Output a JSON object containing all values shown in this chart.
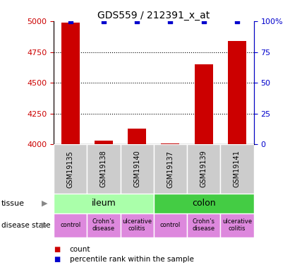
{
  "title": "GDS559 / 212391_x_at",
  "samples": [
    "GSM19135",
    "GSM19138",
    "GSM19140",
    "GSM19137",
    "GSM19139",
    "GSM19141"
  ],
  "counts": [
    4990,
    4032,
    4130,
    4010,
    4650,
    4840
  ],
  "percentiles": [
    100,
    100,
    100,
    100,
    100,
    100
  ],
  "ylim": [
    4000,
    5000
  ],
  "yticks": [
    4000,
    4250,
    4500,
    4750,
    5000
  ],
  "ytick_labels": [
    "4000",
    "4250",
    "4500",
    "4750",
    "5000"
  ],
  "y2ticks": [
    0,
    25,
    50,
    75,
    100
  ],
  "y2tick_labels": [
    "0",
    "25",
    "50",
    "75",
    "100%"
  ],
  "bar_color": "#cc0000",
  "dot_color": "#0000cc",
  "sample_box_color": "#cccccc",
  "tissue_ileum_color": "#aaffaa",
  "tissue_colon_color": "#44cc44",
  "disease_color": "#dd88dd",
  "bar_width": 0.55,
  "background_color": "#ffffff",
  "legend_square_color_count": "#cc0000",
  "legend_square_color_pct": "#0000cc"
}
